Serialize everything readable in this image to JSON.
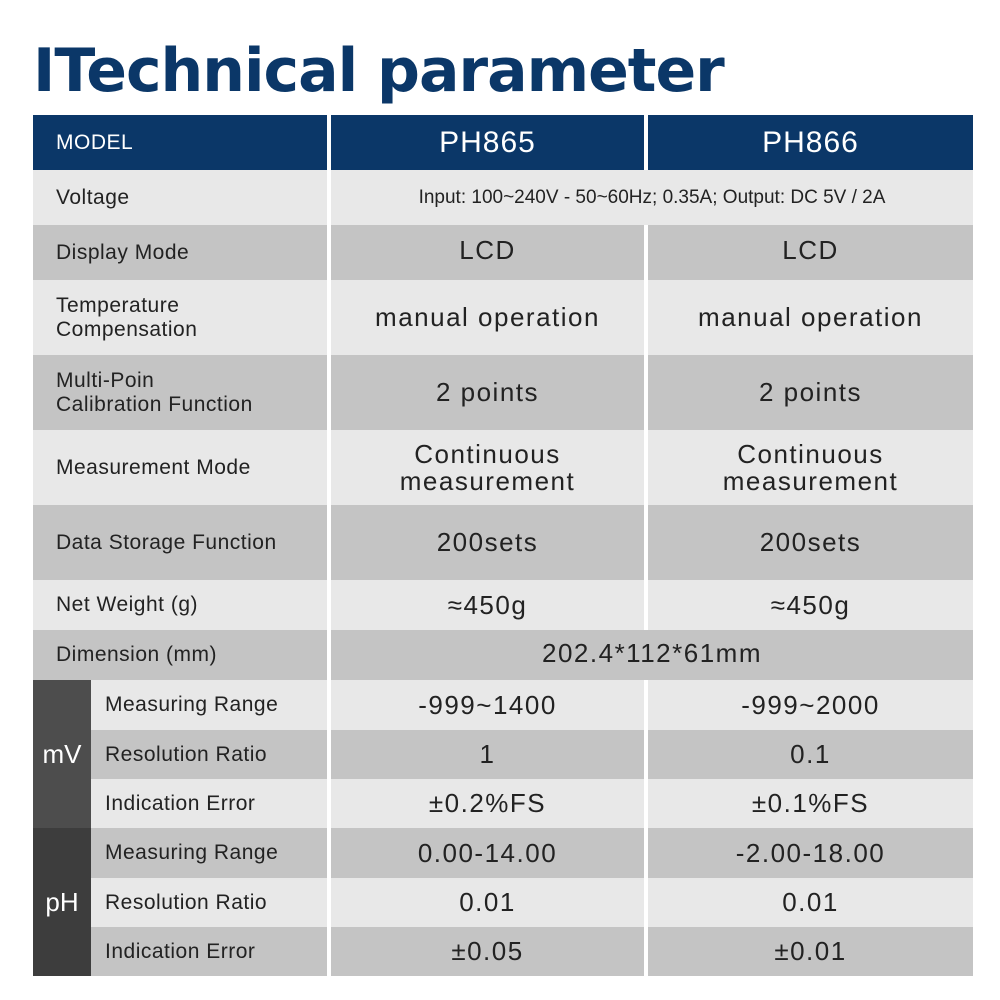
{
  "title": "ITechnical parameter",
  "header": {
    "label": "MODEL",
    "models": [
      "PH865",
      "PH866"
    ]
  },
  "rows": [
    {
      "label": "Voltage",
      "shared": "Input: 100~240V - 50~60Hz; 0.35A; Output: DC 5V / 2A"
    },
    {
      "label": "Display Mode",
      "values": [
        "LCD",
        "LCD"
      ]
    },
    {
      "label": "Temperature\nCompensation",
      "values": [
        "manual operation",
        "manual operation"
      ]
    },
    {
      "label": "Multi-Poin\nCalibration Function",
      "values": [
        "2 points",
        "2 points"
      ]
    },
    {
      "label": "Measurement Mode",
      "values": [
        "Continuous\nmeasurement",
        "Continuous\nmeasurement"
      ]
    },
    {
      "label": "Data Storage Function",
      "values": [
        "200sets",
        "200sets"
      ]
    },
    {
      "label": "Net Weight (g)",
      "values": [
        "≈450g",
        "≈450g"
      ]
    },
    {
      "label": "Dimension (mm)",
      "shared": "202.4*112*61mm"
    }
  ],
  "groups": [
    {
      "name": "mV",
      "rows": [
        {
          "label": "Measuring Range",
          "values": [
            "-999~1400",
            "-999~2000"
          ]
        },
        {
          "label": "Resolution Ratio",
          "values": [
            "1",
            "0.1"
          ]
        },
        {
          "label": "Indication Error",
          "values": [
            "±0.2%FS",
            "±0.1%FS"
          ]
        }
      ]
    },
    {
      "name": "pH",
      "rows": [
        {
          "label": "Measuring Range",
          "values": [
            "0.00-14.00",
            "-2.00-18.00"
          ]
        },
        {
          "label": "Resolution Ratio",
          "values": [
            "0.01",
            "0.01"
          ]
        },
        {
          "label": "Indication Error",
          "values": [
            "±0.05",
            "±0.01"
          ]
        }
      ]
    }
  ],
  "colors": {
    "title": "#0b3768",
    "header_bg": "#0b3768",
    "row_light": "#e8e8e8",
    "row_mid": "#c4c4c4",
    "group_mv": "#4d4d4d",
    "group_ph": "#3d3d3d"
  }
}
